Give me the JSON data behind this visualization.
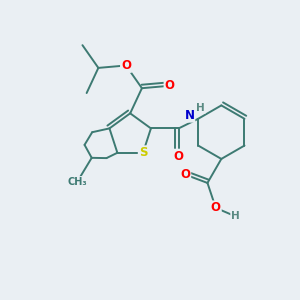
{
  "background_color": "#eaeff3",
  "bond_color": "#3d7a72",
  "atom_colors": {
    "O": "#ff0000",
    "S": "#cccc00",
    "N": "#0000cc",
    "H": "#5a8a82",
    "C": "#3d7a72"
  },
  "bond_width": 1.4,
  "figsize": [
    3.0,
    3.0
  ],
  "dpi": 100
}
